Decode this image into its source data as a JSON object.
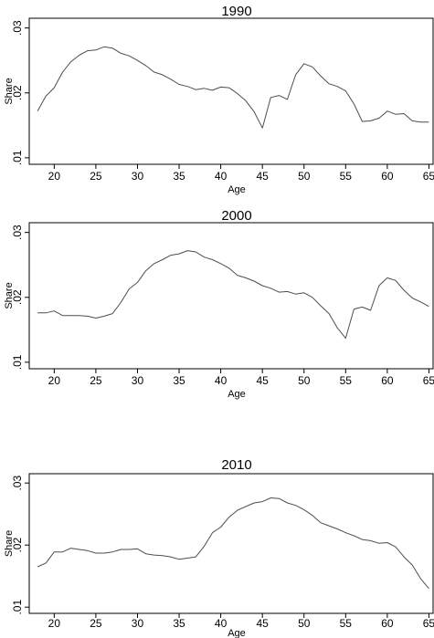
{
  "chart_data": [
    {
      "type": "line",
      "title": "1990",
      "xlabel": "Age",
      "ylabel": "Share",
      "xlim": [
        17,
        65.5
      ],
      "ylim": [
        0.009,
        0.0315
      ],
      "xticks": [
        20,
        25,
        30,
        35,
        40,
        45,
        50,
        55,
        60,
        65
      ],
      "xtick_labels": [
        "20",
        "25",
        "30",
        "35",
        "40",
        "45",
        "50",
        "55",
        "60",
        "65"
      ],
      "yticks": [
        0.01,
        0.02,
        0.03
      ],
      "ytick_labels": [
        ".01",
        ".02",
        ".03"
      ],
      "grid": false,
      "line_color": "#4d4d4d",
      "series": [
        {
          "x": [
            18,
            19,
            20,
            21,
            22,
            23,
            24,
            25,
            26,
            27,
            28,
            29,
            30,
            31,
            32,
            33,
            34,
            35,
            36,
            37,
            38,
            39,
            40,
            41,
            42,
            43,
            44,
            45,
            46,
            47,
            48,
            49,
            50,
            51,
            52,
            53,
            54,
            55,
            56,
            57,
            58,
            59,
            60,
            61,
            62,
            63,
            64,
            65
          ],
          "values": [
            0.0172,
            0.0195,
            0.0208,
            0.0232,
            0.0248,
            0.0258,
            0.0265,
            0.0266,
            0.0271,
            0.0269,
            0.0261,
            0.0257,
            0.025,
            0.0242,
            0.0232,
            0.0228,
            0.0221,
            0.0213,
            0.021,
            0.0205,
            0.0207,
            0.0204,
            0.0209,
            0.0208,
            0.0199,
            0.0188,
            0.0171,
            0.0146,
            0.0193,
            0.0196,
            0.019,
            0.0228,
            0.0245,
            0.024,
            0.0226,
            0.0214,
            0.021,
            0.0203,
            0.0183,
            0.0156,
            0.0157,
            0.0161,
            0.0172,
            0.0167,
            0.0168,
            0.0157,
            0.0155,
            0.0155
          ]
        }
      ]
    },
    {
      "type": "line",
      "title": "2000",
      "xlabel": "Age",
      "ylabel": "Share",
      "xlim": [
        17,
        65.5
      ],
      "ylim": [
        0.009,
        0.0315
      ],
      "xticks": [
        20,
        25,
        30,
        35,
        40,
        45,
        50,
        55,
        60,
        65
      ],
      "xtick_labels": [
        "20",
        "25",
        "30",
        "35",
        "40",
        "45",
        "50",
        "55",
        "60",
        "65"
      ],
      "yticks": [
        0.01,
        0.02,
        0.03
      ],
      "ytick_labels": [
        ".01",
        ".02",
        ".03"
      ],
      "grid": false,
      "line_color": "#4d4d4d",
      "series": [
        {
          "x": [
            18,
            19,
            20,
            21,
            22,
            23,
            24,
            25,
            26,
            27,
            28,
            29,
            30,
            31,
            32,
            33,
            34,
            35,
            36,
            37,
            38,
            39,
            40,
            41,
            42,
            43,
            44,
            45,
            46,
            47,
            48,
            49,
            50,
            51,
            52,
            53,
            54,
            55,
            56,
            57,
            58,
            59,
            60,
            61,
            62,
            63,
            64,
            65
          ],
          "values": [
            0.0176,
            0.0176,
            0.0179,
            0.0172,
            0.0172,
            0.0172,
            0.0171,
            0.0168,
            0.0171,
            0.0175,
            0.0192,
            0.0213,
            0.0223,
            0.0241,
            0.0252,
            0.0258,
            0.0265,
            0.0267,
            0.0272,
            0.027,
            0.0262,
            0.0258,
            0.0252,
            0.0245,
            0.0234,
            0.023,
            0.0225,
            0.0218,
            0.0214,
            0.0208,
            0.0209,
            0.0205,
            0.0207,
            0.02,
            0.0187,
            0.0175,
            0.0153,
            0.0137,
            0.0182,
            0.0185,
            0.018,
            0.0218,
            0.023,
            0.0226,
            0.0211,
            0.0199,
            0.0193,
            0.0186
          ]
        }
      ]
    },
    {
      "type": "line",
      "title": "2010",
      "xlabel": "Age",
      "ylabel": "Share",
      "xlim": [
        17,
        65.5
      ],
      "ylim": [
        0.009,
        0.0315
      ],
      "xticks": [
        20,
        25,
        30,
        35,
        40,
        45,
        50,
        55,
        60,
        65
      ],
      "xtick_labels": [
        "20",
        "25",
        "30",
        "35",
        "40",
        "45",
        "50",
        "55",
        "60",
        "65"
      ],
      "yticks": [
        0.01,
        0.02,
        0.03
      ],
      "ytick_labels": [
        ".01",
        ".02",
        ".03"
      ],
      "grid": false,
      "line_color": "#4d4d4d",
      "series": [
        {
          "x": [
            18,
            19,
            20,
            21,
            22,
            23,
            24,
            25,
            26,
            27,
            28,
            29,
            30,
            31,
            32,
            33,
            34,
            35,
            36,
            37,
            38,
            39,
            40,
            41,
            42,
            43,
            44,
            45,
            46,
            47,
            48,
            49,
            50,
            51,
            52,
            53,
            54,
            55,
            56,
            57,
            58,
            59,
            60,
            61,
            62,
            63,
            64,
            65
          ],
          "values": [
            0.0165,
            0.0171,
            0.0189,
            0.0189,
            0.0195,
            0.0193,
            0.0191,
            0.0187,
            0.0187,
            0.0189,
            0.0193,
            0.0193,
            0.0194,
            0.0186,
            0.0184,
            0.0183,
            0.0181,
            0.0177,
            0.0179,
            0.0181,
            0.0198,
            0.022,
            0.0229,
            0.0245,
            0.0256,
            0.0262,
            0.0268,
            0.027,
            0.0276,
            0.0275,
            0.0268,
            0.0264,
            0.0257,
            0.0248,
            0.0236,
            0.0231,
            0.0226,
            0.022,
            0.0215,
            0.0209,
            0.0207,
            0.0203,
            0.0204,
            0.0197,
            0.0181,
            0.0168,
            0.0146,
            0.013
          ]
        }
      ]
    }
  ]
}
